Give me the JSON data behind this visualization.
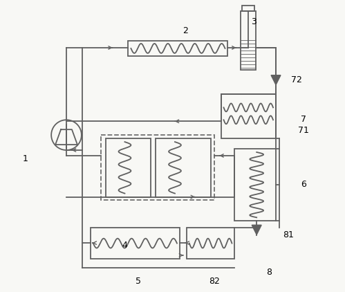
{
  "bg_color": "#f8f8f5",
  "line_color": "#606060",
  "dashed_color": "#707070",
  "figsize": [
    4.99,
    4.22
  ],
  "dpi": 100
}
